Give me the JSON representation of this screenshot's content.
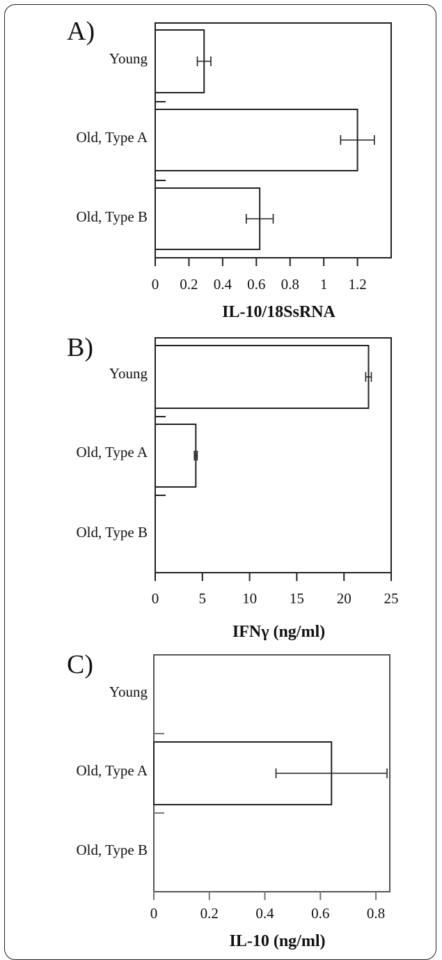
{
  "chart_data": [
    {
      "type": "bar",
      "panel_label": "A)",
      "categories": [
        "Young",
        "Old, Type A",
        "Old, Type B"
      ],
      "values": [
        0.29,
        1.2,
        0.62
      ],
      "errors": [
        0.04,
        0.1,
        0.08
      ],
      "xlabel": "IL-10/18SsRNA",
      "xlim": [
        0,
        1.4
      ],
      "ticks": [
        0,
        0.2,
        0.4,
        0.6,
        0.8,
        1,
        1.2
      ],
      "tick_labels": [
        "0",
        "0.2",
        "0.4",
        "0.6",
        "0.8",
        "1",
        "1.2"
      ],
      "grid": false,
      "legend": "none",
      "orientation": "horizontal"
    },
    {
      "type": "bar",
      "panel_label": "B)",
      "categories": [
        "Young",
        "Old, Type A",
        "Old, Type B"
      ],
      "values": [
        22.6,
        4.3,
        0
      ],
      "errors": [
        0.3,
        0.15,
        0
      ],
      "xlabel": "IFNγ (ng/ml)",
      "xlim": [
        0,
        25
      ],
      "ticks": [
        0,
        5,
        10,
        15,
        20,
        25
      ],
      "tick_labels": [
        "0",
        "5",
        "10",
        "15",
        "20",
        "25"
      ],
      "grid": false,
      "legend": "none",
      "orientation": "horizontal"
    },
    {
      "type": "bar",
      "panel_label": "C)",
      "categories": [
        "Young",
        "Old, Type A",
        "Old, Type B"
      ],
      "values": [
        0,
        0.64,
        0
      ],
      "errors": [
        0,
        0.2,
        0
      ],
      "xlabel": "IL-10 (ng/ml)",
      "xlim": [
        0,
        0.85
      ],
      "ticks": [
        0,
        0.2,
        0.4,
        0.6,
        0.8
      ],
      "tick_labels": [
        "0",
        "0.2",
        "0.4",
        "0.6",
        "0.8"
      ],
      "grid": false,
      "legend": "none",
      "orientation": "horizontal"
    }
  ]
}
